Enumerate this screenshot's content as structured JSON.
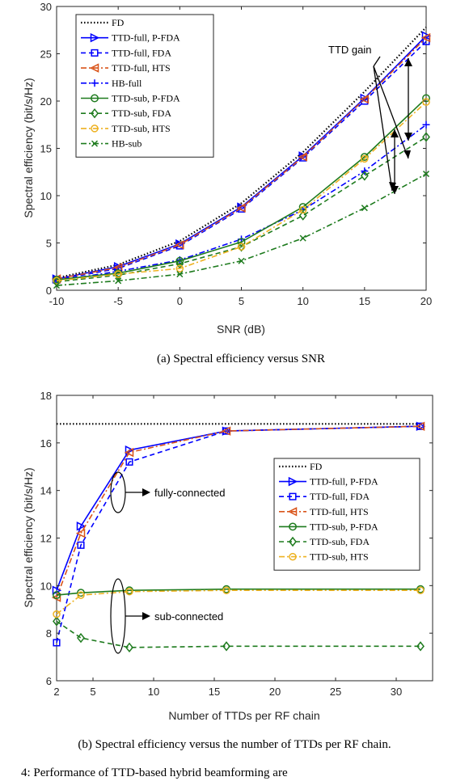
{
  "charts": [
    {
      "chart_data": {
        "type": "line",
        "xlabel": "SNR (dB)",
        "ylabel": "Spectral efficiency (bit/s/Hz)",
        "x": [
          -10,
          -5,
          0,
          5,
          10,
          15,
          20
        ],
        "xlim": [
          -10,
          20
        ],
        "ylim": [
          0,
          30
        ],
        "xticks": [
          -10,
          -5,
          0,
          5,
          10,
          15,
          20
        ],
        "yticks": [
          0,
          5,
          10,
          15,
          20,
          25,
          30
        ],
        "legend_position": "top-left",
        "grid": false,
        "series": [
          {
            "name": "FD",
            "color": "#000000",
            "style": "dotted",
            "marker": "none",
            "values": [
              1.3,
              2.7,
              5.2,
              9.2,
              14.6,
              21.0,
              27.8
            ]
          },
          {
            "name": "TTD-full, P-FDA",
            "color": "#0000ff",
            "style": "solid",
            "marker": "triangle-right",
            "values": [
              1.2,
              2.5,
              4.9,
              8.8,
              14.2,
              20.3,
              26.9
            ]
          },
          {
            "name": "TTD-full, FDA",
            "color": "#0000ff",
            "style": "dashed",
            "marker": "square",
            "values": [
              1.1,
              2.3,
              4.7,
              8.6,
              14.0,
              20.0,
              26.3
            ]
          },
          {
            "name": "TTD-full, HTS",
            "color": "#d9541a",
            "style": "dashdot",
            "marker": "triangle-left",
            "values": [
              1.2,
              2.4,
              4.8,
              8.7,
              14.1,
              20.2,
              26.7
            ]
          },
          {
            "name": "HB-full",
            "color": "#0000ff",
            "style": "dashdot",
            "marker": "plus",
            "values": [
              1.0,
              2.0,
              3.2,
              5.4,
              8.5,
              12.6,
              17.5
            ]
          },
          {
            "name": "TTD-sub, P-FDA",
            "color": "#1e7b1e",
            "style": "solid",
            "marker": "circle",
            "values": [
              1.1,
              1.8,
              3.1,
              5.1,
              8.8,
              14.1,
              20.3
            ]
          },
          {
            "name": "TTD-sub, FDA",
            "color": "#1e7b1e",
            "style": "dashed",
            "marker": "diamond",
            "values": [
              0.9,
              1.6,
              2.8,
              4.6,
              7.9,
              12.1,
              16.2
            ]
          },
          {
            "name": "TTD-sub, HTS",
            "color": "#edb120",
            "style": "dashdot",
            "marker": "filled-circle",
            "values": [
              1.0,
              1.7,
              2.3,
              4.6,
              8.5,
              13.9,
              19.9
            ]
          },
          {
            "name": "HB-sub",
            "color": "#1e7b1e",
            "style": "dashdot",
            "marker": "x",
            "values": [
              0.5,
              1.0,
              1.7,
              3.1,
              5.5,
              8.7,
              12.3
            ]
          }
        ],
        "annotations": [
          {
            "text": "TTD gain"
          }
        ]
      },
      "caption": "(a) Spectral efficiency versus SNR"
    },
    {
      "chart_data": {
        "type": "line",
        "xlabel": "Number of TTDs per RF chain",
        "ylabel": "Spectral efficiency (bit/s/Hz)",
        "x": [
          2,
          4,
          8,
          16,
          32
        ],
        "xlim": [
          2,
          33
        ],
        "ylim": [
          6,
          18
        ],
        "xticks": [
          2,
          5,
          10,
          15,
          20,
          25,
          30
        ],
        "yticks": [
          6,
          8,
          10,
          12,
          14,
          16,
          18
        ],
        "legend_position": "right",
        "grid": false,
        "series": [
          {
            "name": "FD",
            "color": "#000000",
            "style": "dotted",
            "marker": "none",
            "values": [
              16.8,
              16.8,
              16.8,
              16.8,
              16.8
            ]
          },
          {
            "name": "TTD-full, P-FDA",
            "color": "#0000ff",
            "style": "solid",
            "marker": "triangle-right",
            "values": [
              9.8,
              12.5,
              15.7,
              16.5,
              16.7
            ]
          },
          {
            "name": "TTD-full, FDA",
            "color": "#0000ff",
            "style": "dashed",
            "marker": "square",
            "values": [
              7.6,
              11.7,
              15.2,
              16.5,
              16.7
            ]
          },
          {
            "name": "TTD-full, HTS",
            "color": "#d9541a",
            "style": "dashdot",
            "marker": "triangle-left",
            "values": [
              9.5,
              12.2,
              15.6,
              16.5,
              16.7
            ]
          },
          {
            "name": "TTD-sub, P-FDA",
            "color": "#1e7b1e",
            "style": "solid",
            "marker": "circle",
            "values": [
              9.6,
              9.7,
              9.8,
              9.85,
              9.85
            ]
          },
          {
            "name": "TTD-sub, FDA",
            "color": "#1e7b1e",
            "style": "dashed",
            "marker": "diamond",
            "values": [
              8.5,
              7.8,
              7.4,
              7.45,
              7.45
            ]
          },
          {
            "name": "TTD-sub, HTS",
            "color": "#edb120",
            "style": "dashdot",
            "marker": "filled-circle",
            "values": [
              8.8,
              9.6,
              9.75,
              9.8,
              9.8
            ]
          }
        ],
        "annotations": [
          {
            "text": "fully-connected"
          },
          {
            "text": "sub-connected"
          }
        ]
      },
      "caption": "(b) Spectral efficiency versus the number of TTDs per RF chain."
    }
  ],
  "trailing_caption": "4: Performance of TTD-based hybrid beamforming are"
}
